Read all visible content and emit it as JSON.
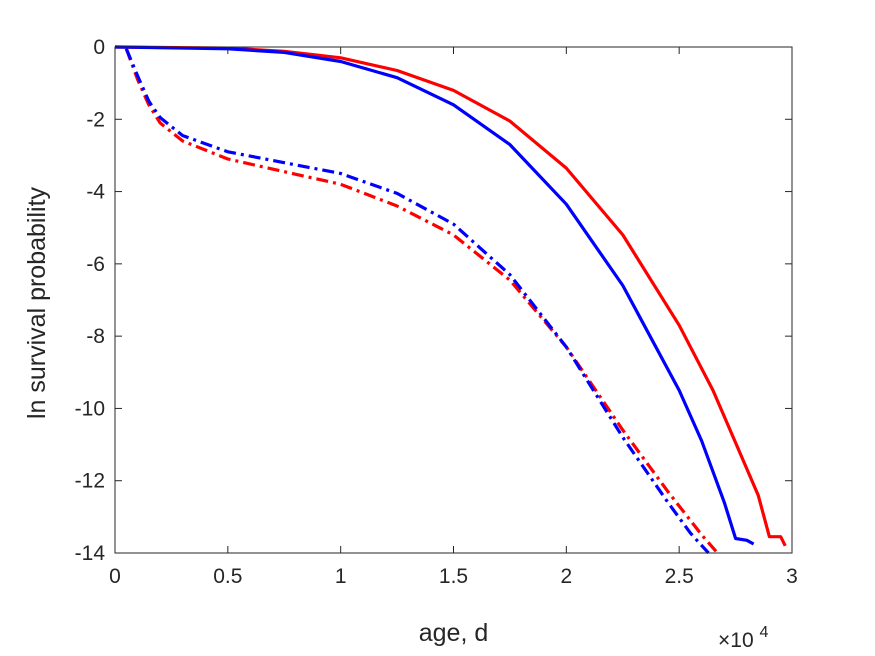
{
  "chart_data": {
    "type": "line",
    "xlabel": "age, d",
    "ylabel": "ln survival probability",
    "x_multiplier_label": {
      "base": "×10",
      "exponent": "4"
    },
    "xlim": [
      0,
      3
    ],
    "ylim": [
      -14,
      0
    ],
    "x_ticks": [
      "0",
      "0.5",
      "1",
      "1.5",
      "2",
      "2.5",
      "3"
    ],
    "y_ticks": [
      "0",
      "-2",
      "-4",
      "-6",
      "-8",
      "-10",
      "-12",
      "-14"
    ],
    "x_tick_values": [
      0,
      0.5,
      1,
      1.5,
      2,
      2.5,
      3
    ],
    "y_tick_values": [
      0,
      -2,
      -4,
      -6,
      -8,
      -10,
      -12,
      -14
    ],
    "grid": false,
    "series": [
      {
        "color": "#ff0000",
        "style": "solid",
        "x": [
          0,
          0.5,
          0.75,
          1.0,
          1.25,
          1.5,
          1.75,
          2.0,
          2.25,
          2.5,
          2.65,
          2.75,
          2.85,
          2.9,
          2.95,
          2.97
        ],
        "y": [
          0,
          -0.03,
          -0.12,
          -0.3,
          -0.65,
          -1.2,
          -2.05,
          -3.35,
          -5.2,
          -7.7,
          -9.5,
          -10.95,
          -12.4,
          -13.55,
          -13.55,
          -13.8
        ]
      },
      {
        "color": "#0000ff",
        "style": "solid",
        "x": [
          0,
          0.5,
          0.75,
          1.0,
          1.25,
          1.5,
          1.75,
          2.0,
          2.25,
          2.5,
          2.6,
          2.7,
          2.75,
          2.8,
          2.83
        ],
        "y": [
          0,
          -0.05,
          -0.15,
          -0.4,
          -0.85,
          -1.6,
          -2.7,
          -4.35,
          -6.6,
          -9.5,
          -10.9,
          -12.6,
          -13.6,
          -13.65,
          -13.75
        ]
      },
      {
        "color": "#ff0000",
        "style": "dashdot",
        "x": [
          0.05,
          0.1,
          0.15,
          0.2,
          0.3,
          0.5,
          0.75,
          1.0,
          1.25,
          1.5,
          1.75,
          2.0,
          2.25,
          2.45,
          2.6,
          2.67
        ],
        "y": [
          -0.05,
          -0.9,
          -1.6,
          -2.1,
          -2.6,
          -3.1,
          -3.45,
          -3.8,
          -4.4,
          -5.2,
          -6.45,
          -8.3,
          -10.6,
          -12.3,
          -13.5,
          -14
        ]
      },
      {
        "color": "#0000ff",
        "style": "dashdot",
        "x": [
          0.05,
          0.1,
          0.15,
          0.2,
          0.3,
          0.5,
          0.75,
          1.0,
          1.25,
          1.5,
          1.75,
          2.0,
          2.25,
          2.45,
          2.55,
          2.63
        ],
        "y": [
          -0.05,
          -0.8,
          -1.5,
          -1.95,
          -2.45,
          -2.9,
          -3.2,
          -3.5,
          -4.05,
          -4.9,
          -6.3,
          -8.3,
          -10.8,
          -12.6,
          -13.45,
          -14
        ]
      }
    ]
  }
}
